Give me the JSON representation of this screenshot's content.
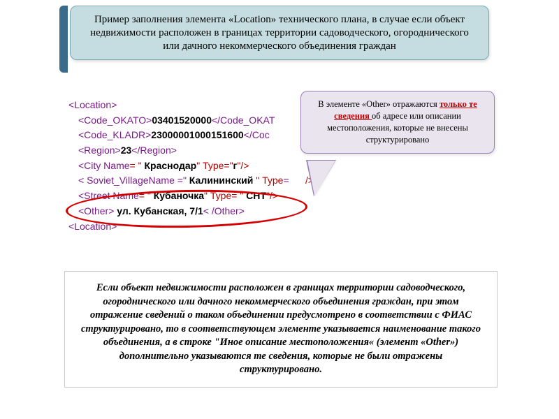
{
  "header": {
    "text": "Пример заполнения элемента «Location» технического плана, в случае если объект недвижимости расположен в границах территории садоводческого, огороднического или дачного некоммерческого объединения граждан"
  },
  "xml": {
    "loc_open": "<Location>",
    "okato_open": "<Code_OKATO>",
    "okato_val": "03401520000",
    "okato_close": "</Code_OKAT",
    "kladr_open": "<Code_KLADR>",
    "kladr_val": "23000001000151600",
    "kladr_close": "</Coc",
    "region_open": "<Region>",
    "region_val": "23",
    "region_close": "</Region>",
    "city_open": "<City Name",
    "city_eq": "= \"",
    "city_name": " Краснодар",
    "city_mid": "\" Type=\"",
    "city_type": "г",
    "city_end": "\"/>",
    "sv_open": "< Soviet_VillageName =\"",
    "sv_name": " Калининский ",
    "sv_mid": "\" Type",
    "sv_eq2": "=",
    "sv_end": "/>",
    "street_open": "<Street Name",
    "street_eq": "= \"",
    "street_name": " Кубаночка",
    "street_mid": "\" Type= \"",
    "street_type": " СНТ",
    "street_end": "\"/>",
    "other_open": "<Other>",
    "other_val": " ул. Кубанская, 7/1",
    "other_close": "< /Other>",
    "loc_close": "<Location>"
  },
  "callout": {
    "pre": "В элементе «Other» отражаются ",
    "hl": "только те сведения ",
    "post": "об адресе или описании местоположения, которые не внесены структурировано"
  },
  "bottom": {
    "text": "Если объект недвижимости расположен в границах территории садоводческого, огороднического или дачного некоммерческого объединения граждан, при этом отражение сведений о таком объединении предусмотрено в соответствии с ФИАС структурировано, то в соответствующем элементе указывается наименование такого объединения, а в строке \"Иное описание местоположения« (элемент «Other») дополнительно указываются те сведения, которые не были отражены структурировано."
  }
}
